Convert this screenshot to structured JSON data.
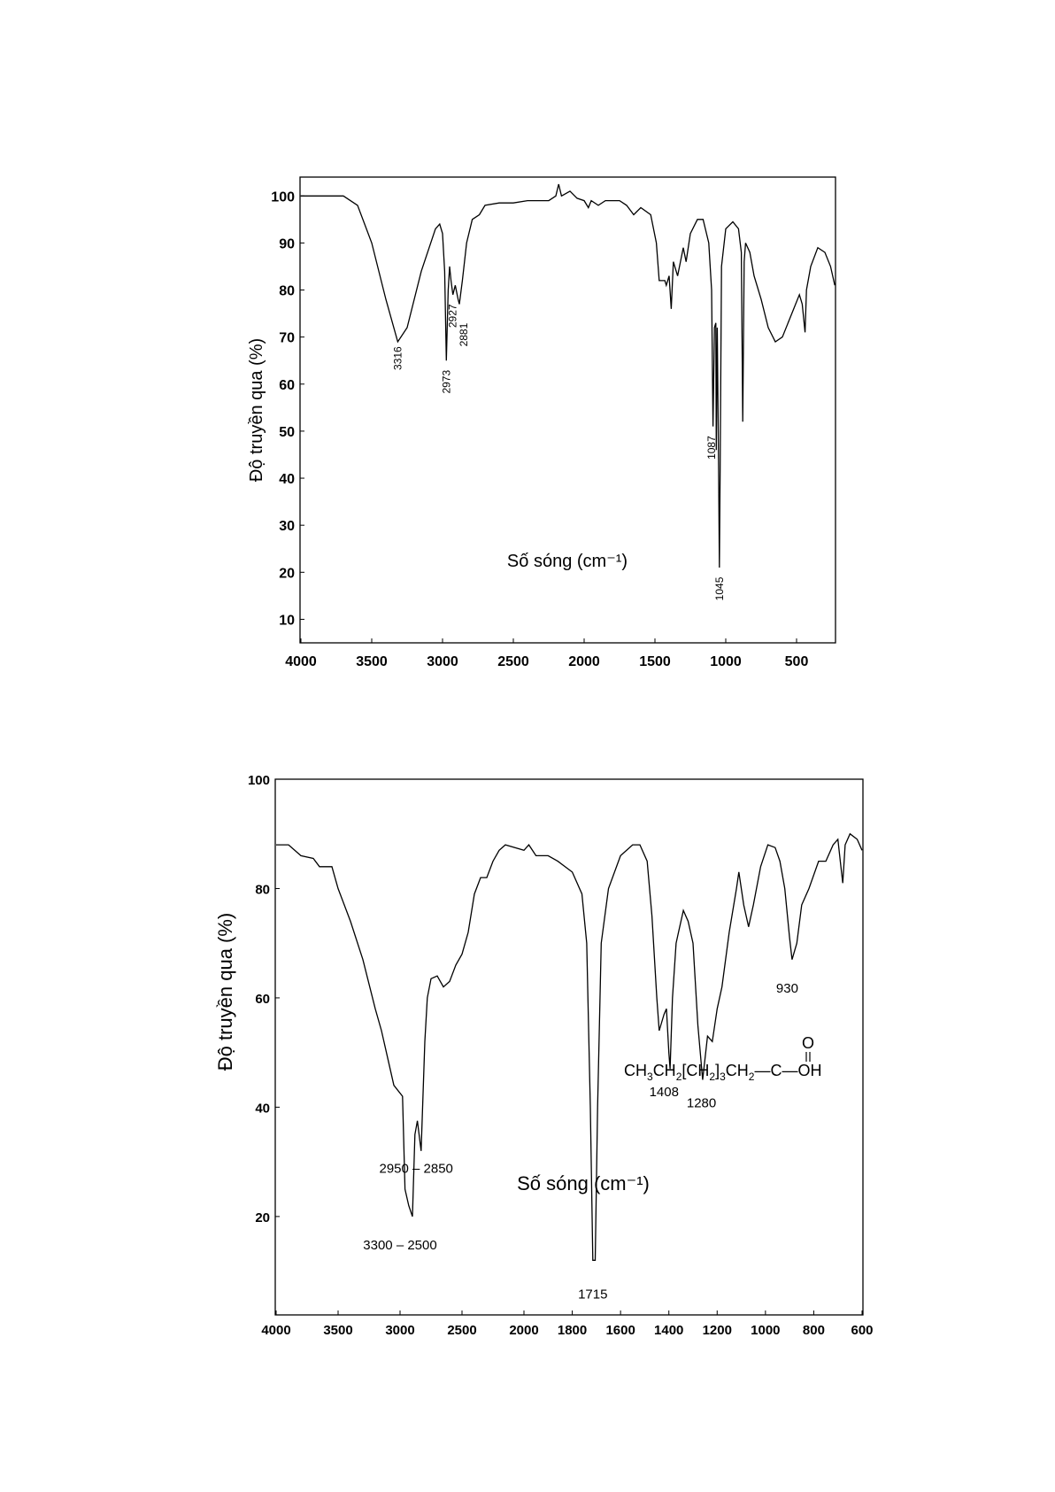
{
  "chart_data": [
    {
      "type": "line",
      "title": "",
      "xlabel": "Số sóng (cm⁻¹)",
      "ylabel": "Độ truyền qua (%)",
      "xlim": [
        4000,
        225
      ],
      "ylim": [
        5,
        104
      ],
      "xticks": [
        4000,
        3500,
        3000,
        2500,
        2000,
        1500,
        1000,
        500
      ],
      "yticks": [
        100,
        90,
        80,
        70,
        60,
        50,
        40,
        30,
        20,
        10
      ],
      "grid": false,
      "annotations": [
        {
          "text": "3316",
          "x": 3316,
          "y": 68
        },
        {
          "text": "2973",
          "x": 2973,
          "y": 63
        },
        {
          "text": "2927",
          "x": 2927,
          "y": 77
        },
        {
          "text": "2881",
          "x": 2850,
          "y": 73
        },
        {
          "text": "1087",
          "x": 1100,
          "y": 49
        },
        {
          "text": "1045",
          "x": 1045,
          "y": 19
        }
      ],
      "series": [
        {
          "name": "spectrum",
          "x": [
            4000,
            3700,
            3600,
            3500,
            3400,
            3316,
            3250,
            3150,
            3050,
            3020,
            3000,
            2985,
            2973,
            2960,
            2950,
            2940,
            2927,
            2910,
            2890,
            2881,
            2860,
            2830,
            2790,
            2740,
            2700,
            2600,
            2500,
            2400,
            2250,
            2200,
            2180,
            2160,
            2100,
            2050,
            2000,
            1970,
            1950,
            1900,
            1850,
            1750,
            1700,
            1650,
            1600,
            1530,
            1490,
            1470,
            1430,
            1420,
            1400,
            1385,
            1370,
            1340,
            1300,
            1280,
            1250,
            1200,
            1160,
            1120,
            1100,
            1090,
            1080,
            1070,
            1067,
            1060,
            1050,
            1045,
            1040,
            1030,
            1000,
            950,
            910,
            890,
            880,
            870,
            860,
            830,
            800,
            750,
            700,
            650,
            600,
            520,
            480,
            460,
            440,
            430,
            400,
            350,
            300,
            260,
            230
          ],
          "y": [
            100,
            100,
            98,
            90,
            78,
            69,
            72,
            84,
            93,
            94,
            92,
            84,
            65,
            80,
            85,
            82,
            79,
            81,
            78,
            77,
            82,
            90,
            95,
            96,
            98,
            98.5,
            98.5,
            99,
            99,
            100,
            102.5,
            100,
            101,
            99.5,
            99,
            97.5,
            99,
            98,
            99,
            99,
            98,
            96,
            97.5,
            96,
            90,
            82,
            82,
            81,
            83,
            76,
            86,
            83,
            89,
            86,
            92,
            95,
            95,
            90,
            80,
            51,
            72,
            73,
            46,
            72,
            40,
            21,
            40,
            85,
            93,
            94.5,
            93,
            88,
            52,
            86,
            90,
            88,
            83,
            78,
            72,
            69,
            70,
            76,
            79,
            77,
            71,
            80,
            85,
            89,
            88,
            85,
            81
          ]
        }
      ]
    },
    {
      "type": "line",
      "title": "",
      "xlabel": "Số sóng (cm⁻¹)",
      "ylabel": "Độ truyền qua (%)",
      "xlim": [
        4000,
        600
      ],
      "x_scale_break": 2000,
      "ylim": [
        2,
        100
      ],
      "xticks": [
        4000,
        3500,
        3000,
        2500,
        2000,
        1800,
        1600,
        1400,
        1200,
        1000,
        800,
        600
      ],
      "yticks": [
        100,
        80,
        60,
        40,
        20
      ],
      "grid": false,
      "annotations": [
        {
          "text": "2950 – 2850",
          "x": 2870,
          "y": 28
        },
        {
          "text": "3300 – 2500",
          "x": 3000,
          "y": 14
        },
        {
          "text": "1715",
          "x": 1715,
          "y": 5
        },
        {
          "text": "1408",
          "x": 1420,
          "y": 42
        },
        {
          "text": "1280",
          "x": 1265,
          "y": 40
        },
        {
          "text": "930",
          "x": 910,
          "y": 61
        }
      ],
      "formula": {
        "parts": [
          [
            "CH",
            "n"
          ],
          [
            "3",
            "sub"
          ],
          [
            "CH",
            "n"
          ],
          [
            "2",
            "sub"
          ],
          [
            "[CH",
            "n"
          ],
          [
            "2",
            "sub"
          ],
          [
            "]",
            "n"
          ],
          [
            "3",
            "sub"
          ],
          [
            "CH",
            "n"
          ],
          [
            "2",
            "sub"
          ],
          [
            "—C—OH",
            "n"
          ]
        ],
        "carbonyl": "O"
      },
      "series": [
        {
          "name": "spectrum",
          "x": [
            4000,
            3900,
            3800,
            3700,
            3650,
            3550,
            3500,
            3400,
            3300,
            3200,
            3150,
            3100,
            3050,
            2980,
            2960,
            2930,
            2900,
            2880,
            2860,
            2830,
            2800,
            2780,
            2750,
            2700,
            2650,
            2600,
            2550,
            2500,
            2450,
            2400,
            2350,
            2300,
            2250,
            2200,
            2150,
            2000,
            1980,
            1950,
            1900,
            1860,
            1800,
            1760,
            1740,
            1725,
            1715,
            1705,
            1695,
            1680,
            1650,
            1600,
            1550,
            1520,
            1490,
            1470,
            1450,
            1440,
            1420,
            1410,
            1400,
            1395,
            1385,
            1370,
            1360,
            1340,
            1320,
            1300,
            1280,
            1260,
            1240,
            1220,
            1200,
            1180,
            1150,
            1120,
            1110,
            1090,
            1070,
            1050,
            1020,
            990,
            960,
            940,
            920,
            900,
            890,
            870,
            850,
            820,
            780,
            750,
            720,
            700,
            690,
            680,
            670,
            650,
            620,
            600
          ],
          "y": [
            88,
            88,
            86,
            85.5,
            84,
            84,
            80,
            74,
            67,
            58,
            54,
            49,
            44,
            42,
            25,
            22,
            20,
            35,
            37.5,
            32,
            52,
            60,
            63.5,
            64,
            62,
            63,
            66,
            68,
            72,
            79,
            82,
            82,
            85,
            87,
            88,
            87,
            88,
            86,
            86,
            85,
            83,
            79,
            70,
            40,
            12,
            12,
            40,
            70,
            80,
            86,
            88,
            88,
            85,
            75,
            60,
            54,
            57,
            58,
            50,
            47,
            60,
            70,
            72,
            76,
            74,
            70,
            55,
            45,
            53,
            52,
            58,
            62,
            72,
            80,
            83,
            77,
            73,
            77,
            84,
            88,
            87.5,
            85,
            80,
            71,
            67,
            70,
            77,
            80,
            85,
            85,
            88,
            89,
            85,
            81,
            88,
            90,
            89,
            87
          ]
        }
      ]
    }
  ]
}
